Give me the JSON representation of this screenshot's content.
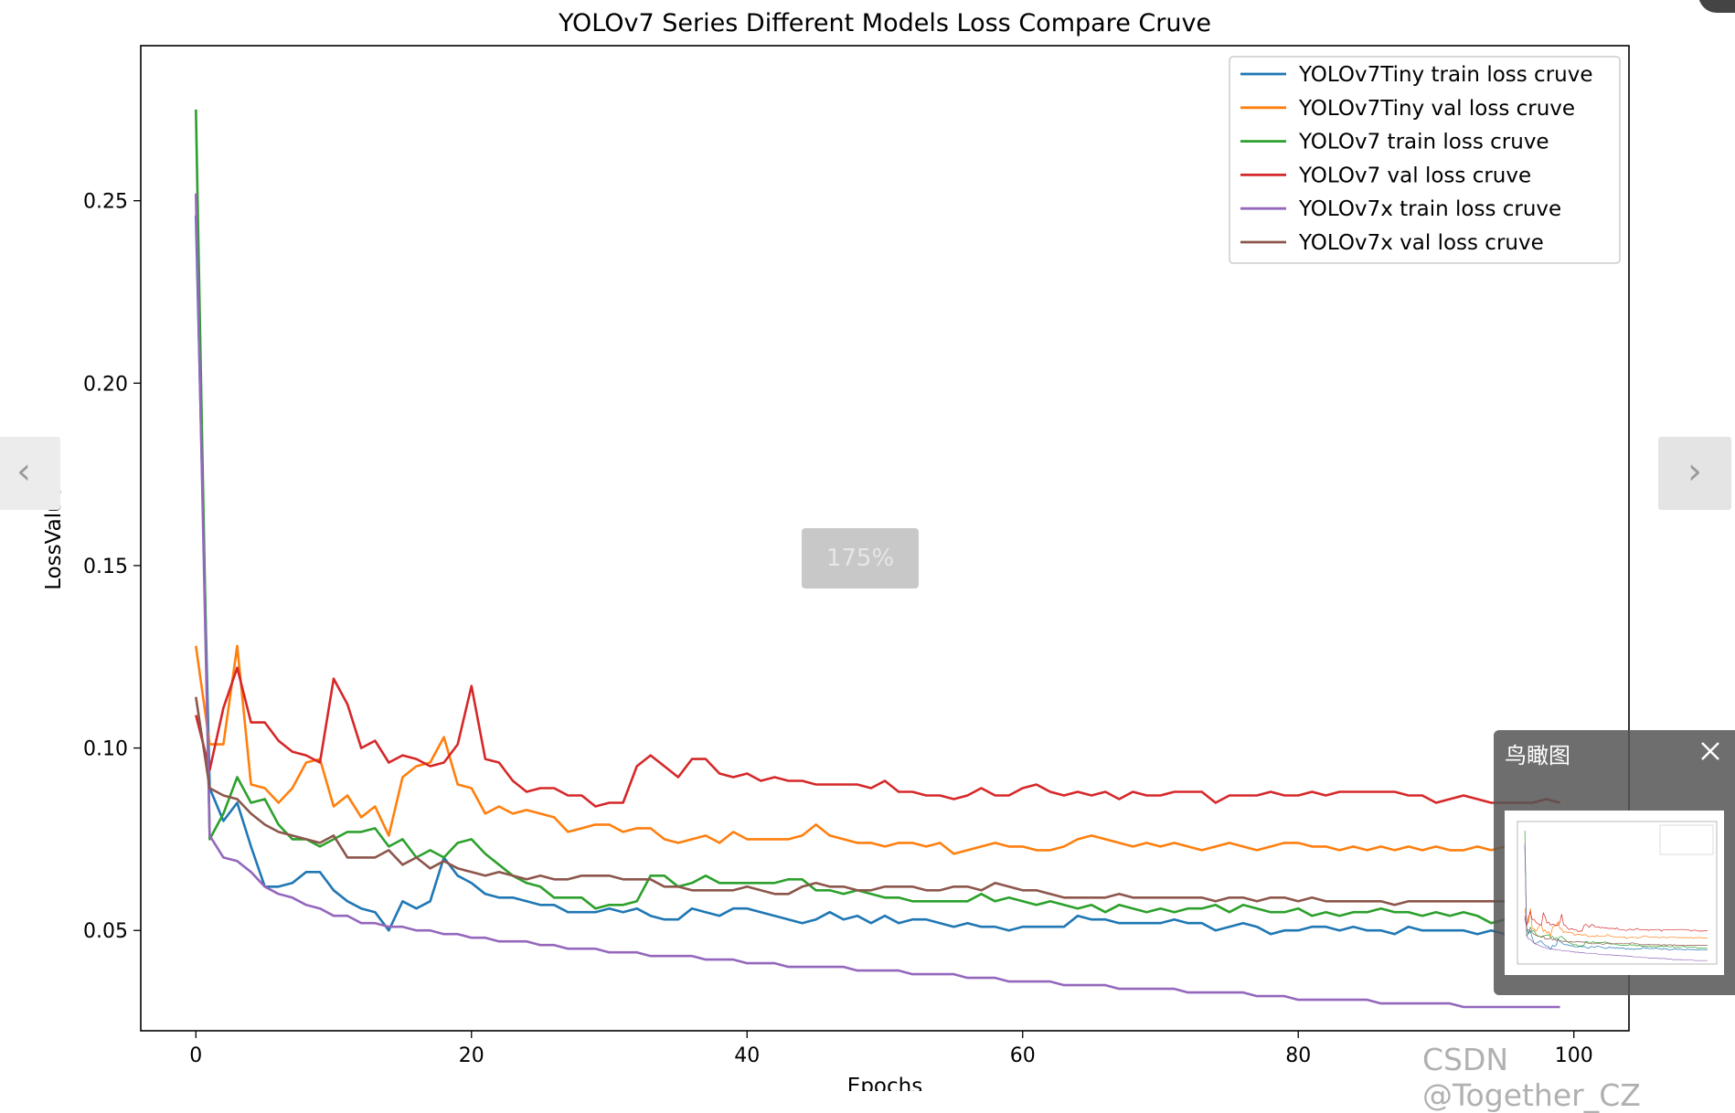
{
  "chart_data": {
    "type": "line",
    "title": "YOLOv7 Series Different Models Loss Compare Cruve",
    "xlabel": "Epochs",
    "ylabel": "LossValue",
    "xlim": [
      -4,
      104
    ],
    "ylim": [
      0.0225,
      0.2925
    ],
    "xticks": [
      0,
      20,
      40,
      60,
      80,
      100
    ],
    "yticks": [
      0.05,
      0.1,
      0.15,
      0.2,
      0.25
    ],
    "grid": false,
    "legend": "top-right",
    "series": [
      {
        "name": "YOLOv7Tiny train loss cruve",
        "color": "#1f77b4",
        "values": [
          0.246,
          0.089,
          0.08,
          0.085,
          0.073,
          0.062,
          0.062,
          0.063,
          0.066,
          0.066,
          0.061,
          0.058,
          0.056,
          0.055,
          0.05,
          0.058,
          0.056,
          0.058,
          0.07,
          0.065,
          0.063,
          0.06,
          0.059,
          0.059,
          0.058,
          0.057,
          0.057,
          0.055,
          0.055,
          0.055,
          0.056,
          0.055,
          0.056,
          0.054,
          0.053,
          0.053,
          0.056,
          0.055,
          0.054,
          0.056,
          0.056,
          0.055,
          0.054,
          0.053,
          0.052,
          0.053,
          0.055,
          0.053,
          0.054,
          0.052,
          0.054,
          0.052,
          0.053,
          0.053,
          0.052,
          0.051,
          0.052,
          0.051,
          0.051,
          0.05,
          0.051,
          0.051,
          0.051,
          0.051,
          0.054,
          0.053,
          0.053,
          0.052,
          0.052,
          0.052,
          0.052,
          0.053,
          0.052,
          0.052,
          0.05,
          0.051,
          0.052,
          0.051,
          0.049,
          0.05,
          0.05,
          0.051,
          0.051,
          0.05,
          0.051,
          0.05,
          0.05,
          0.049,
          0.051,
          0.05,
          0.05,
          0.05,
          0.05,
          0.049,
          0.05,
          0.049,
          0.049,
          0.049,
          0.049,
          0.049
        ]
      },
      {
        "name": "YOLOv7Tiny val loss cruve",
        "color": "#ff7f0e",
        "values": [
          0.128,
          0.101,
          0.101,
          0.128,
          0.09,
          0.089,
          0.085,
          0.089,
          0.096,
          0.097,
          0.084,
          0.087,
          0.081,
          0.084,
          0.076,
          0.092,
          0.095,
          0.096,
          0.103,
          0.09,
          0.089,
          0.082,
          0.084,
          0.082,
          0.083,
          0.082,
          0.081,
          0.077,
          0.078,
          0.079,
          0.079,
          0.077,
          0.078,
          0.078,
          0.075,
          0.074,
          0.075,
          0.076,
          0.074,
          0.077,
          0.075,
          0.075,
          0.075,
          0.075,
          0.076,
          0.079,
          0.076,
          0.075,
          0.074,
          0.074,
          0.073,
          0.074,
          0.074,
          0.073,
          0.074,
          0.071,
          0.072,
          0.073,
          0.074,
          0.073,
          0.073,
          0.072,
          0.072,
          0.073,
          0.075,
          0.076,
          0.075,
          0.074,
          0.073,
          0.074,
          0.073,
          0.074,
          0.073,
          0.072,
          0.073,
          0.074,
          0.073,
          0.072,
          0.073,
          0.074,
          0.074,
          0.073,
          0.073,
          0.072,
          0.073,
          0.072,
          0.073,
          0.072,
          0.073,
          0.072,
          0.073,
          0.072,
          0.072,
          0.073,
          0.072,
          0.073,
          0.072,
          0.072,
          0.072,
          0.072
        ]
      },
      {
        "name": "YOLOv7 train loss cruve",
        "color": "#2ca02c",
        "values": [
          0.275,
          0.075,
          0.082,
          0.092,
          0.085,
          0.086,
          0.079,
          0.075,
          0.075,
          0.073,
          0.075,
          0.077,
          0.077,
          0.078,
          0.073,
          0.075,
          0.07,
          0.072,
          0.07,
          0.074,
          0.075,
          0.071,
          0.068,
          0.065,
          0.063,
          0.062,
          0.059,
          0.059,
          0.059,
          0.056,
          0.057,
          0.057,
          0.058,
          0.065,
          0.065,
          0.062,
          0.063,
          0.065,
          0.063,
          0.063,
          0.063,
          0.063,
          0.063,
          0.064,
          0.064,
          0.061,
          0.061,
          0.06,
          0.061,
          0.06,
          0.059,
          0.059,
          0.058,
          0.058,
          0.058,
          0.058,
          0.058,
          0.06,
          0.058,
          0.059,
          0.058,
          0.057,
          0.058,
          0.057,
          0.056,
          0.057,
          0.055,
          0.057,
          0.056,
          0.055,
          0.056,
          0.055,
          0.056,
          0.056,
          0.057,
          0.055,
          0.057,
          0.056,
          0.055,
          0.055,
          0.056,
          0.054,
          0.055,
          0.054,
          0.055,
          0.055,
          0.056,
          0.055,
          0.055,
          0.054,
          0.055,
          0.054,
          0.055,
          0.054,
          0.052,
          0.053,
          0.053,
          0.053,
          0.052,
          0.053
        ]
      },
      {
        "name": "YOLOv7 val loss cruve",
        "color": "#d62728",
        "values": [
          0.109,
          0.094,
          0.111,
          0.122,
          0.107,
          0.107,
          0.102,
          0.099,
          0.098,
          0.096,
          0.119,
          0.112,
          0.1,
          0.102,
          0.096,
          0.098,
          0.097,
          0.095,
          0.096,
          0.101,
          0.117,
          0.097,
          0.096,
          0.091,
          0.088,
          0.089,
          0.089,
          0.087,
          0.087,
          0.084,
          0.085,
          0.085,
          0.095,
          0.098,
          0.095,
          0.092,
          0.097,
          0.097,
          0.093,
          0.092,
          0.093,
          0.091,
          0.092,
          0.091,
          0.091,
          0.09,
          0.09,
          0.09,
          0.09,
          0.089,
          0.091,
          0.088,
          0.088,
          0.087,
          0.087,
          0.086,
          0.087,
          0.089,
          0.087,
          0.087,
          0.089,
          0.09,
          0.088,
          0.087,
          0.088,
          0.087,
          0.088,
          0.086,
          0.088,
          0.087,
          0.087,
          0.088,
          0.088,
          0.088,
          0.085,
          0.087,
          0.087,
          0.087,
          0.088,
          0.087,
          0.087,
          0.088,
          0.087,
          0.088,
          0.088,
          0.088,
          0.088,
          0.088,
          0.087,
          0.087,
          0.085,
          0.086,
          0.087,
          0.086,
          0.085,
          0.085,
          0.085,
          0.085,
          0.086,
          0.085
        ]
      },
      {
        "name": "YOLOv7x train loss cruve",
        "color": "#9467bd",
        "values": [
          0.252,
          0.076,
          0.07,
          0.069,
          0.066,
          0.062,
          0.06,
          0.059,
          0.057,
          0.056,
          0.054,
          0.054,
          0.052,
          0.052,
          0.051,
          0.051,
          0.05,
          0.05,
          0.049,
          0.049,
          0.048,
          0.048,
          0.047,
          0.047,
          0.047,
          0.046,
          0.046,
          0.045,
          0.045,
          0.045,
          0.044,
          0.044,
          0.044,
          0.043,
          0.043,
          0.043,
          0.043,
          0.042,
          0.042,
          0.042,
          0.041,
          0.041,
          0.041,
          0.04,
          0.04,
          0.04,
          0.04,
          0.04,
          0.039,
          0.039,
          0.039,
          0.039,
          0.038,
          0.038,
          0.038,
          0.038,
          0.037,
          0.037,
          0.037,
          0.036,
          0.036,
          0.036,
          0.036,
          0.035,
          0.035,
          0.035,
          0.035,
          0.034,
          0.034,
          0.034,
          0.034,
          0.034,
          0.033,
          0.033,
          0.033,
          0.033,
          0.033,
          0.032,
          0.032,
          0.032,
          0.031,
          0.031,
          0.031,
          0.031,
          0.031,
          0.031,
          0.03,
          0.03,
          0.03,
          0.03,
          0.03,
          0.03,
          0.029,
          0.029,
          0.029,
          0.029,
          0.029,
          0.029,
          0.029,
          0.029
        ]
      },
      {
        "name": "YOLOv7x val loss cruve",
        "color": "#8c564b",
        "values": [
          0.114,
          0.089,
          0.087,
          0.086,
          0.082,
          0.079,
          0.077,
          0.076,
          0.075,
          0.074,
          0.076,
          0.07,
          0.07,
          0.07,
          0.072,
          0.068,
          0.07,
          0.067,
          0.069,
          0.067,
          0.066,
          0.065,
          0.066,
          0.065,
          0.064,
          0.065,
          0.064,
          0.064,
          0.065,
          0.065,
          0.065,
          0.064,
          0.064,
          0.064,
          0.062,
          0.062,
          0.061,
          0.061,
          0.061,
          0.061,
          0.062,
          0.061,
          0.06,
          0.06,
          0.062,
          0.063,
          0.062,
          0.062,
          0.061,
          0.061,
          0.062,
          0.062,
          0.062,
          0.061,
          0.061,
          0.062,
          0.062,
          0.061,
          0.063,
          0.062,
          0.061,
          0.061,
          0.06,
          0.059,
          0.059,
          0.059,
          0.059,
          0.06,
          0.059,
          0.059,
          0.059,
          0.059,
          0.059,
          0.059,
          0.058,
          0.059,
          0.059,
          0.058,
          0.059,
          0.059,
          0.058,
          0.059,
          0.058,
          0.058,
          0.058,
          0.058,
          0.058,
          0.057,
          0.058,
          0.058,
          0.058,
          0.058,
          0.058,
          0.058,
          0.058,
          0.058,
          0.058,
          0.058,
          0.058,
          0.058
        ]
      }
    ]
  },
  "viewer": {
    "prev_icon": "‹",
    "next_icon": "›",
    "zoom_label": "175%",
    "overview_title": "鸟瞰图",
    "watermark": "CSDN @Together_CZ"
  }
}
